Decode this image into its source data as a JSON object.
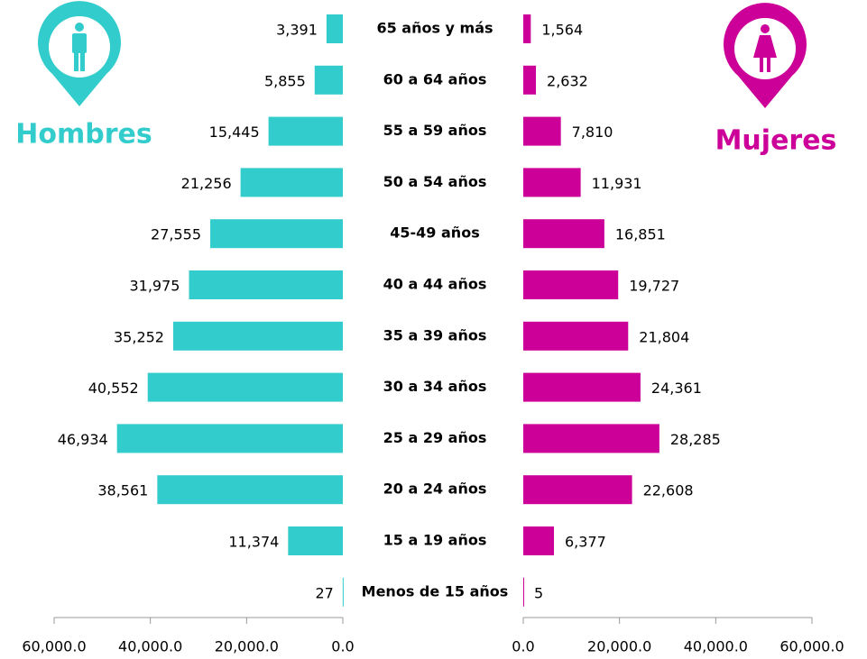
{
  "chart_data": {
    "type": "pyramid",
    "categories": [
      "65 años  y más",
      "60 a 64 años",
      "55 a 59 años",
      "50 a 54 años",
      "45-49 años",
      "40 a 44 años",
      "35 a 39 años",
      "30 a 34 años",
      "25 a 29 años",
      "20 a 24 años",
      "15 a 19 años",
      "Menos de 15 años"
    ],
    "series": [
      {
        "name": "Hombres",
        "color": "#33cccc",
        "values": [
          3391,
          5855,
          15445,
          21256,
          27555,
          31975,
          35252,
          40552,
          46934,
          38561,
          11374,
          27
        ],
        "value_labels": [
          "3,391",
          "5,855",
          "15,445",
          "21,256",
          "27,555",
          "31,975",
          "35,252",
          "40,552",
          "46,934",
          "38,561",
          "11,374",
          "27"
        ]
      },
      {
        "name": "Mujeres",
        "color": "#cc0099",
        "values": [
          1564,
          2632,
          7810,
          11931,
          16851,
          19727,
          21804,
          24361,
          28285,
          22608,
          6377,
          5
        ],
        "value_labels": [
          "1,564",
          "2,632",
          "7,810",
          "11,931",
          "16,851",
          "19,727",
          "21,804",
          "24,361",
          "28,285",
          "22,608",
          "6,377",
          "5"
        ]
      }
    ],
    "xlim": [
      0,
      60000
    ],
    "xticks": [
      {
        "value": 0,
        "label": "0.0"
      },
      {
        "value": 20000,
        "label": "20,000.0"
      },
      {
        "value": 40000,
        "label": "40,000.0"
      },
      {
        "value": 60000,
        "label": "60,000.0"
      }
    ]
  }
}
